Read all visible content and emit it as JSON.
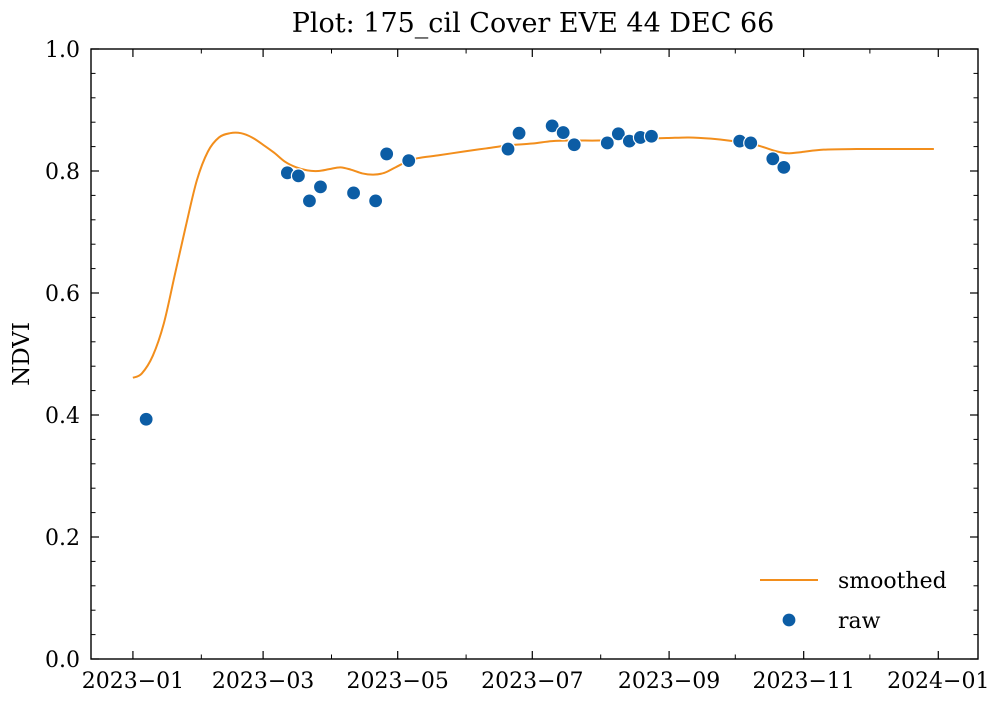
{
  "chart_data": {
    "type": "scatter",
    "title": "Plot: 175_cil Cover EVE 44 DEC 66",
    "xlabel": "",
    "ylabel": "NDVI",
    "xlim": [
      "2022-12-13",
      "2024-01-19"
    ],
    "ylim": [
      0,
      1
    ],
    "grid": false,
    "legend_position": "lower-right",
    "x_ticks": [
      "2023-01-01",
      "2023-03-01",
      "2023-05-01",
      "2023-07-01",
      "2023-09-01",
      "2023-11-01",
      "2024-01-01"
    ],
    "x_tick_labels": [
      "2023−01",
      "2023−03",
      "2023−05",
      "2023−07",
      "2023−09",
      "2023−11",
      "2024−01"
    ],
    "y_ticks": [
      0,
      0.2,
      0.4,
      0.6,
      0.8,
      1.0
    ],
    "y_tick_labels": [
      "0.0",
      "0.2",
      "0.4",
      "0.6",
      "0.8",
      "1.0"
    ],
    "series": [
      {
        "name": "smoothed",
        "kind": "line",
        "color": "#f28e1c",
        "points": [
          [
            "2023-01-01",
            0.461
          ],
          [
            "2023-01-05",
            0.468
          ],
          [
            "2023-01-10",
            0.497
          ],
          [
            "2023-01-15",
            0.55
          ],
          [
            "2023-01-20",
            0.63
          ],
          [
            "2023-01-25",
            0.71
          ],
          [
            "2023-01-30",
            0.785
          ],
          [
            "2023-02-04",
            0.832
          ],
          [
            "2023-02-09",
            0.855
          ],
          [
            "2023-02-14",
            0.862
          ],
          [
            "2023-02-19",
            0.862
          ],
          [
            "2023-02-24",
            0.855
          ],
          [
            "2023-03-01",
            0.843
          ],
          [
            "2023-03-06",
            0.83
          ],
          [
            "2023-03-11",
            0.815
          ],
          [
            "2023-03-16",
            0.806
          ],
          [
            "2023-03-21",
            0.801
          ],
          [
            "2023-03-26",
            0.8
          ],
          [
            "2023-03-31",
            0.803
          ],
          [
            "2023-04-05",
            0.806
          ],
          [
            "2023-04-10",
            0.802
          ],
          [
            "2023-04-15",
            0.796
          ],
          [
            "2023-04-20",
            0.794
          ],
          [
            "2023-04-25",
            0.797
          ],
          [
            "2023-04-30",
            0.806
          ],
          [
            "2023-05-05",
            0.815
          ],
          [
            "2023-05-10",
            0.821
          ],
          [
            "2023-05-20",
            0.826
          ],
          [
            "2023-05-31",
            0.832
          ],
          [
            "2023-06-10",
            0.837
          ],
          [
            "2023-06-20",
            0.842
          ],
          [
            "2023-07-01",
            0.845
          ],
          [
            "2023-07-10",
            0.849
          ],
          [
            "2023-07-20",
            0.85
          ],
          [
            "2023-07-31",
            0.85
          ],
          [
            "2023-08-10",
            0.852
          ],
          [
            "2023-08-20",
            0.853
          ],
          [
            "2023-08-31",
            0.854
          ],
          [
            "2023-09-10",
            0.855
          ],
          [
            "2023-09-20",
            0.853
          ],
          [
            "2023-09-30",
            0.849
          ],
          [
            "2023-10-10",
            0.843
          ],
          [
            "2023-10-20",
            0.832
          ],
          [
            "2023-10-25",
            0.829
          ],
          [
            "2023-10-31",
            0.831
          ],
          [
            "2023-11-10",
            0.835
          ],
          [
            "2023-11-25",
            0.836
          ],
          [
            "2023-12-10",
            0.836
          ],
          [
            "2023-12-30",
            0.836
          ]
        ]
      },
      {
        "name": "raw",
        "kind": "scatter",
        "color": "#0c5da5",
        "points": [
          [
            "2023-01-07",
            0.393
          ],
          [
            "2023-03-12",
            0.797
          ],
          [
            "2023-03-17",
            0.792
          ],
          [
            "2023-03-22",
            0.751
          ],
          [
            "2023-03-27",
            0.774
          ],
          [
            "2023-04-11",
            0.764
          ],
          [
            "2023-04-21",
            0.751
          ],
          [
            "2023-04-26",
            0.828
          ],
          [
            "2023-05-06",
            0.817
          ],
          [
            "2023-06-20",
            0.836
          ],
          [
            "2023-06-25",
            0.862
          ],
          [
            "2023-07-10",
            0.874
          ],
          [
            "2023-07-15",
            0.863
          ],
          [
            "2023-07-20",
            0.843
          ],
          [
            "2023-08-04",
            0.846
          ],
          [
            "2023-08-09",
            0.861
          ],
          [
            "2023-08-14",
            0.849
          ],
          [
            "2023-08-19",
            0.855
          ],
          [
            "2023-08-24",
            0.857
          ],
          [
            "2023-10-03",
            0.849
          ],
          [
            "2023-10-08",
            0.846
          ],
          [
            "2023-10-18",
            0.82
          ],
          [
            "2023-10-23",
            0.806
          ]
        ]
      }
    ]
  }
}
